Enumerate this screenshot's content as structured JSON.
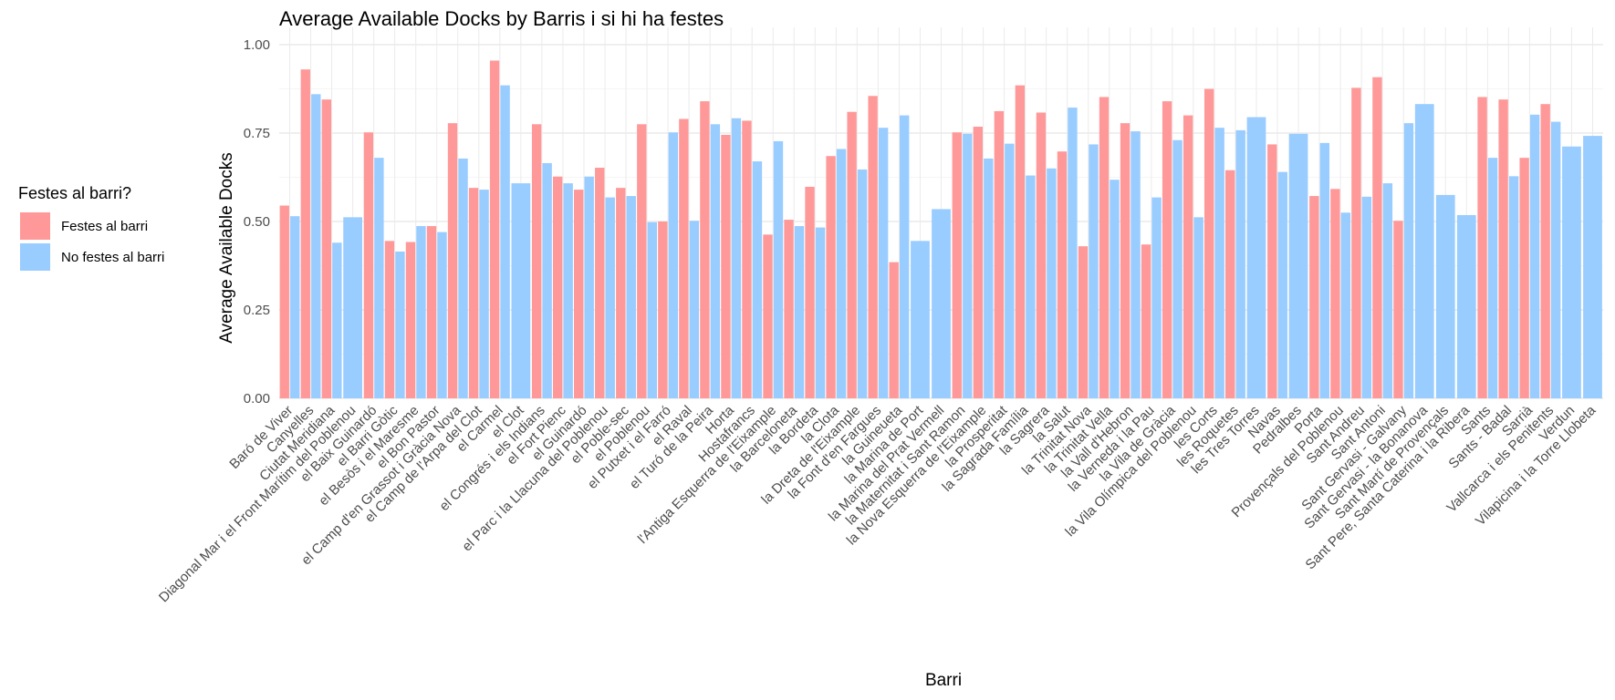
{
  "chart_data": {
    "type": "bar",
    "title": "Average Available Docks by Barris i si hi ha festes",
    "xlabel": "Barri",
    "ylabel": "Average Available Docks",
    "ylim": [
      0,
      1
    ],
    "yticks": [
      "0.00",
      "0.25",
      "0.50",
      "0.75",
      "1.00"
    ],
    "grid": true,
    "legend": {
      "title": "Festes al barri?",
      "placement": "left",
      "entries": [
        {
          "label": "Festes al barri",
          "color": "#FF9999"
        },
        {
          "label": "No festes al barri",
          "color": "#99CCFF"
        }
      ]
    },
    "categories": [
      "Baró de Viver",
      "Canyelles",
      "Ciutat Meridiana",
      "Diagonal Mar i el Front Marítim del Poblenou",
      "el Baix Guinardó",
      "el Barri Gòtic",
      "el Besòs i el Maresme",
      "el Bon Pastor",
      "el Camp d'en Grassot i Gràcia Nova",
      "el Camp de l'Arpa del Clot",
      "el Carmel",
      "el Clot",
      "el Congrés i els Indians",
      "el Fort Pienc",
      "el Guinardó",
      "el Parc i la Llacuna del Poblenou",
      "el Poble-sec",
      "el Poblenou",
      "el Putxet i el Farró",
      "el Raval",
      "el Turó de la Peira",
      "Horta",
      "Hostafrancs",
      "l'Antiga Esquerra de l'Eixample",
      "la Barceloneta",
      "la Bordeta",
      "la Clota",
      "la Dreta de l'Eixample",
      "la Font d'en Fargues",
      "la Guineueta",
      "la Marina de Port",
      "la Marina del Prat Vermell",
      "la Maternitat i Sant Ramon",
      "la Nova Esquerra de l'Eixample",
      "la Prosperitat",
      "la Sagrada Família",
      "la Sagrera",
      "la Salut",
      "la Trinitat Nova",
      "la Trinitat Vella",
      "la Vall d'Hebron",
      "la Verneda i la Pau",
      "la Vila de Gràcia",
      "la Vila Olímpica del Poblenou",
      "les Corts",
      "les Roquetes",
      "les Tres Torres",
      "Navas",
      "Pedralbes",
      "Porta",
      "Provençals del Poblenou",
      "Sant Andreu",
      "Sant Antoni",
      "Sant Gervasi - Galvany",
      "Sant Gervasi - la Bonanova",
      "Sant Martí de Provençals",
      "Sant Pere, Santa Caterina i la Ribera",
      "Sants",
      "Sants - Badal",
      "Sarrià",
      "Vallcarca i els Penitents",
      "Verdun",
      "Vilapicina i la Torre Llobeta"
    ],
    "series": [
      {
        "name": "Festes al barri",
        "color": "#FF9999",
        "values": [
          0.545,
          0.93,
          0.845,
          null,
          0.752,
          0.445,
          0.442,
          0.487,
          0.778,
          0.595,
          0.955,
          null,
          0.775,
          0.627,
          0.59,
          0.652,
          0.595,
          0.775,
          0.5,
          0.79,
          0.84,
          0.745,
          0.785,
          0.463,
          0.505,
          0.598,
          0.685,
          0.81,
          0.855,
          0.385,
          null,
          null,
          0.752,
          0.768,
          0.812,
          0.885,
          0.808,
          0.698,
          0.43,
          0.852,
          0.778,
          0.435,
          0.84,
          0.8,
          0.875,
          0.645,
          null,
          0.718,
          null,
          0.572,
          0.592,
          0.878,
          0.908,
          0.502,
          null,
          null,
          null,
          0.852,
          0.845,
          0.68,
          0.832,
          null,
          null
        ]
      },
      {
        "name": "No festes al barri",
        "color": "#99CCFF",
        "values": [
          0.515,
          0.86,
          0.44,
          0.512,
          0.68,
          0.415,
          0.487,
          0.47,
          0.678,
          0.59,
          0.885,
          0.608,
          0.665,
          0.608,
          0.627,
          0.568,
          0.572,
          0.498,
          0.752,
          0.502,
          0.775,
          0.792,
          0.67,
          0.727,
          0.487,
          0.483,
          0.705,
          0.647,
          0.765,
          0.8,
          0.445,
          0.535,
          0.748,
          0.678,
          0.72,
          0.63,
          0.65,
          0.822,
          0.718,
          0.618,
          0.755,
          0.568,
          0.73,
          0.512,
          0.765,
          0.758,
          0.795,
          0.64,
          0.748,
          0.722,
          0.525,
          0.57,
          0.608,
          0.778,
          0.832,
          0.575,
          0.518,
          0.68,
          0.628,
          0.802,
          0.782,
          0.712,
          0.742
        ]
      }
    ]
  }
}
